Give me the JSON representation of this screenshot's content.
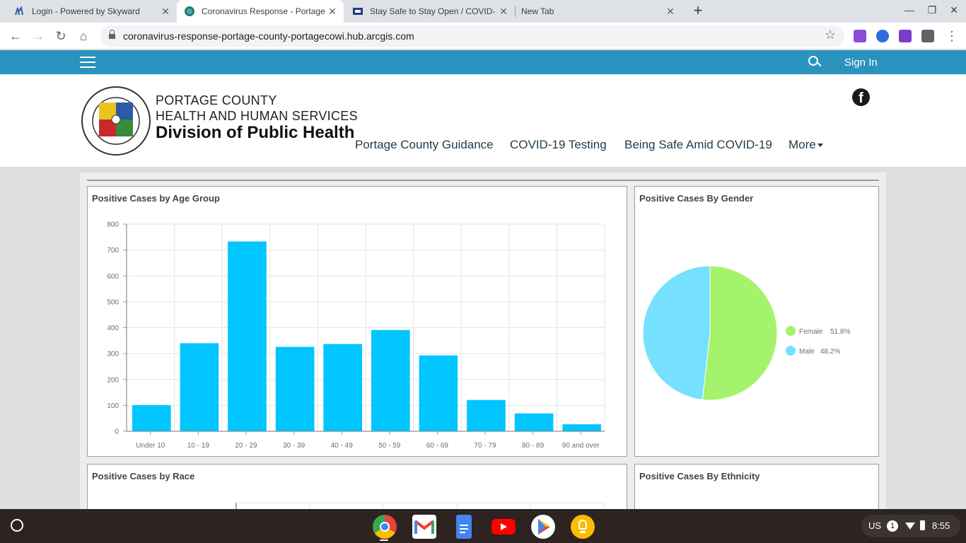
{
  "browser": {
    "tabs": [
      {
        "title": "Login - Powered by Skyward",
        "active": false
      },
      {
        "title": "Coronavirus Response - Portage",
        "active": true
      },
      {
        "title": "Stay Safe to Stay Open / COVID-",
        "active": false
      },
      {
        "title": "New Tab",
        "active": false
      }
    ],
    "url": "coronavirus-response-portage-county-portagecowi.hub.arcgis.com"
  },
  "site": {
    "sign_in": "Sign In",
    "org_line1": "PORTAGE COUNTY",
    "org_line2": "HEALTH AND HUMAN SERVICES",
    "org_line3": "Division of Public Health",
    "nav": [
      "Portage County Guidance",
      "COVID-19 Testing",
      "Being Safe Amid COVID-19",
      "More"
    ],
    "accent_color": "#2a93bd"
  },
  "panels": {
    "age_title": "Positive Cases by Age Group",
    "gender_title": "Positive Cases By Gender",
    "race_title": "Positive Cases by Race",
    "ethnicity_title": "Positive Cases By Ethnicity"
  },
  "chart_data": [
    {
      "type": "bar",
      "title": "Positive Cases by Age Group",
      "categories": [
        "Under 10",
        "10 - 19",
        "20 - 29",
        "30 - 39",
        "40 - 49",
        "50 - 59",
        "60 - 69",
        "70 - 79",
        "80 - 89",
        "90 and over"
      ],
      "values": [
        101,
        340,
        733,
        326,
        337,
        391,
        293,
        121,
        69,
        27
      ],
      "ylim": [
        0,
        800
      ],
      "yticks": [
        0,
        100,
        200,
        300,
        400,
        500,
        600,
        700,
        800
      ],
      "grid": true,
      "color": "#00c5ff"
    },
    {
      "type": "pie",
      "title": "Positive Cases By Gender",
      "labels": [
        "Female",
        "Male"
      ],
      "values": [
        51.8,
        48.2
      ],
      "display": [
        "51.8%",
        "48.2%"
      ],
      "colors": [
        "#a5f36c",
        "#76e0ff"
      ],
      "legend": "right"
    }
  ],
  "shelf": {
    "keyboard": "US",
    "notifications": "1",
    "time": "8:55"
  }
}
